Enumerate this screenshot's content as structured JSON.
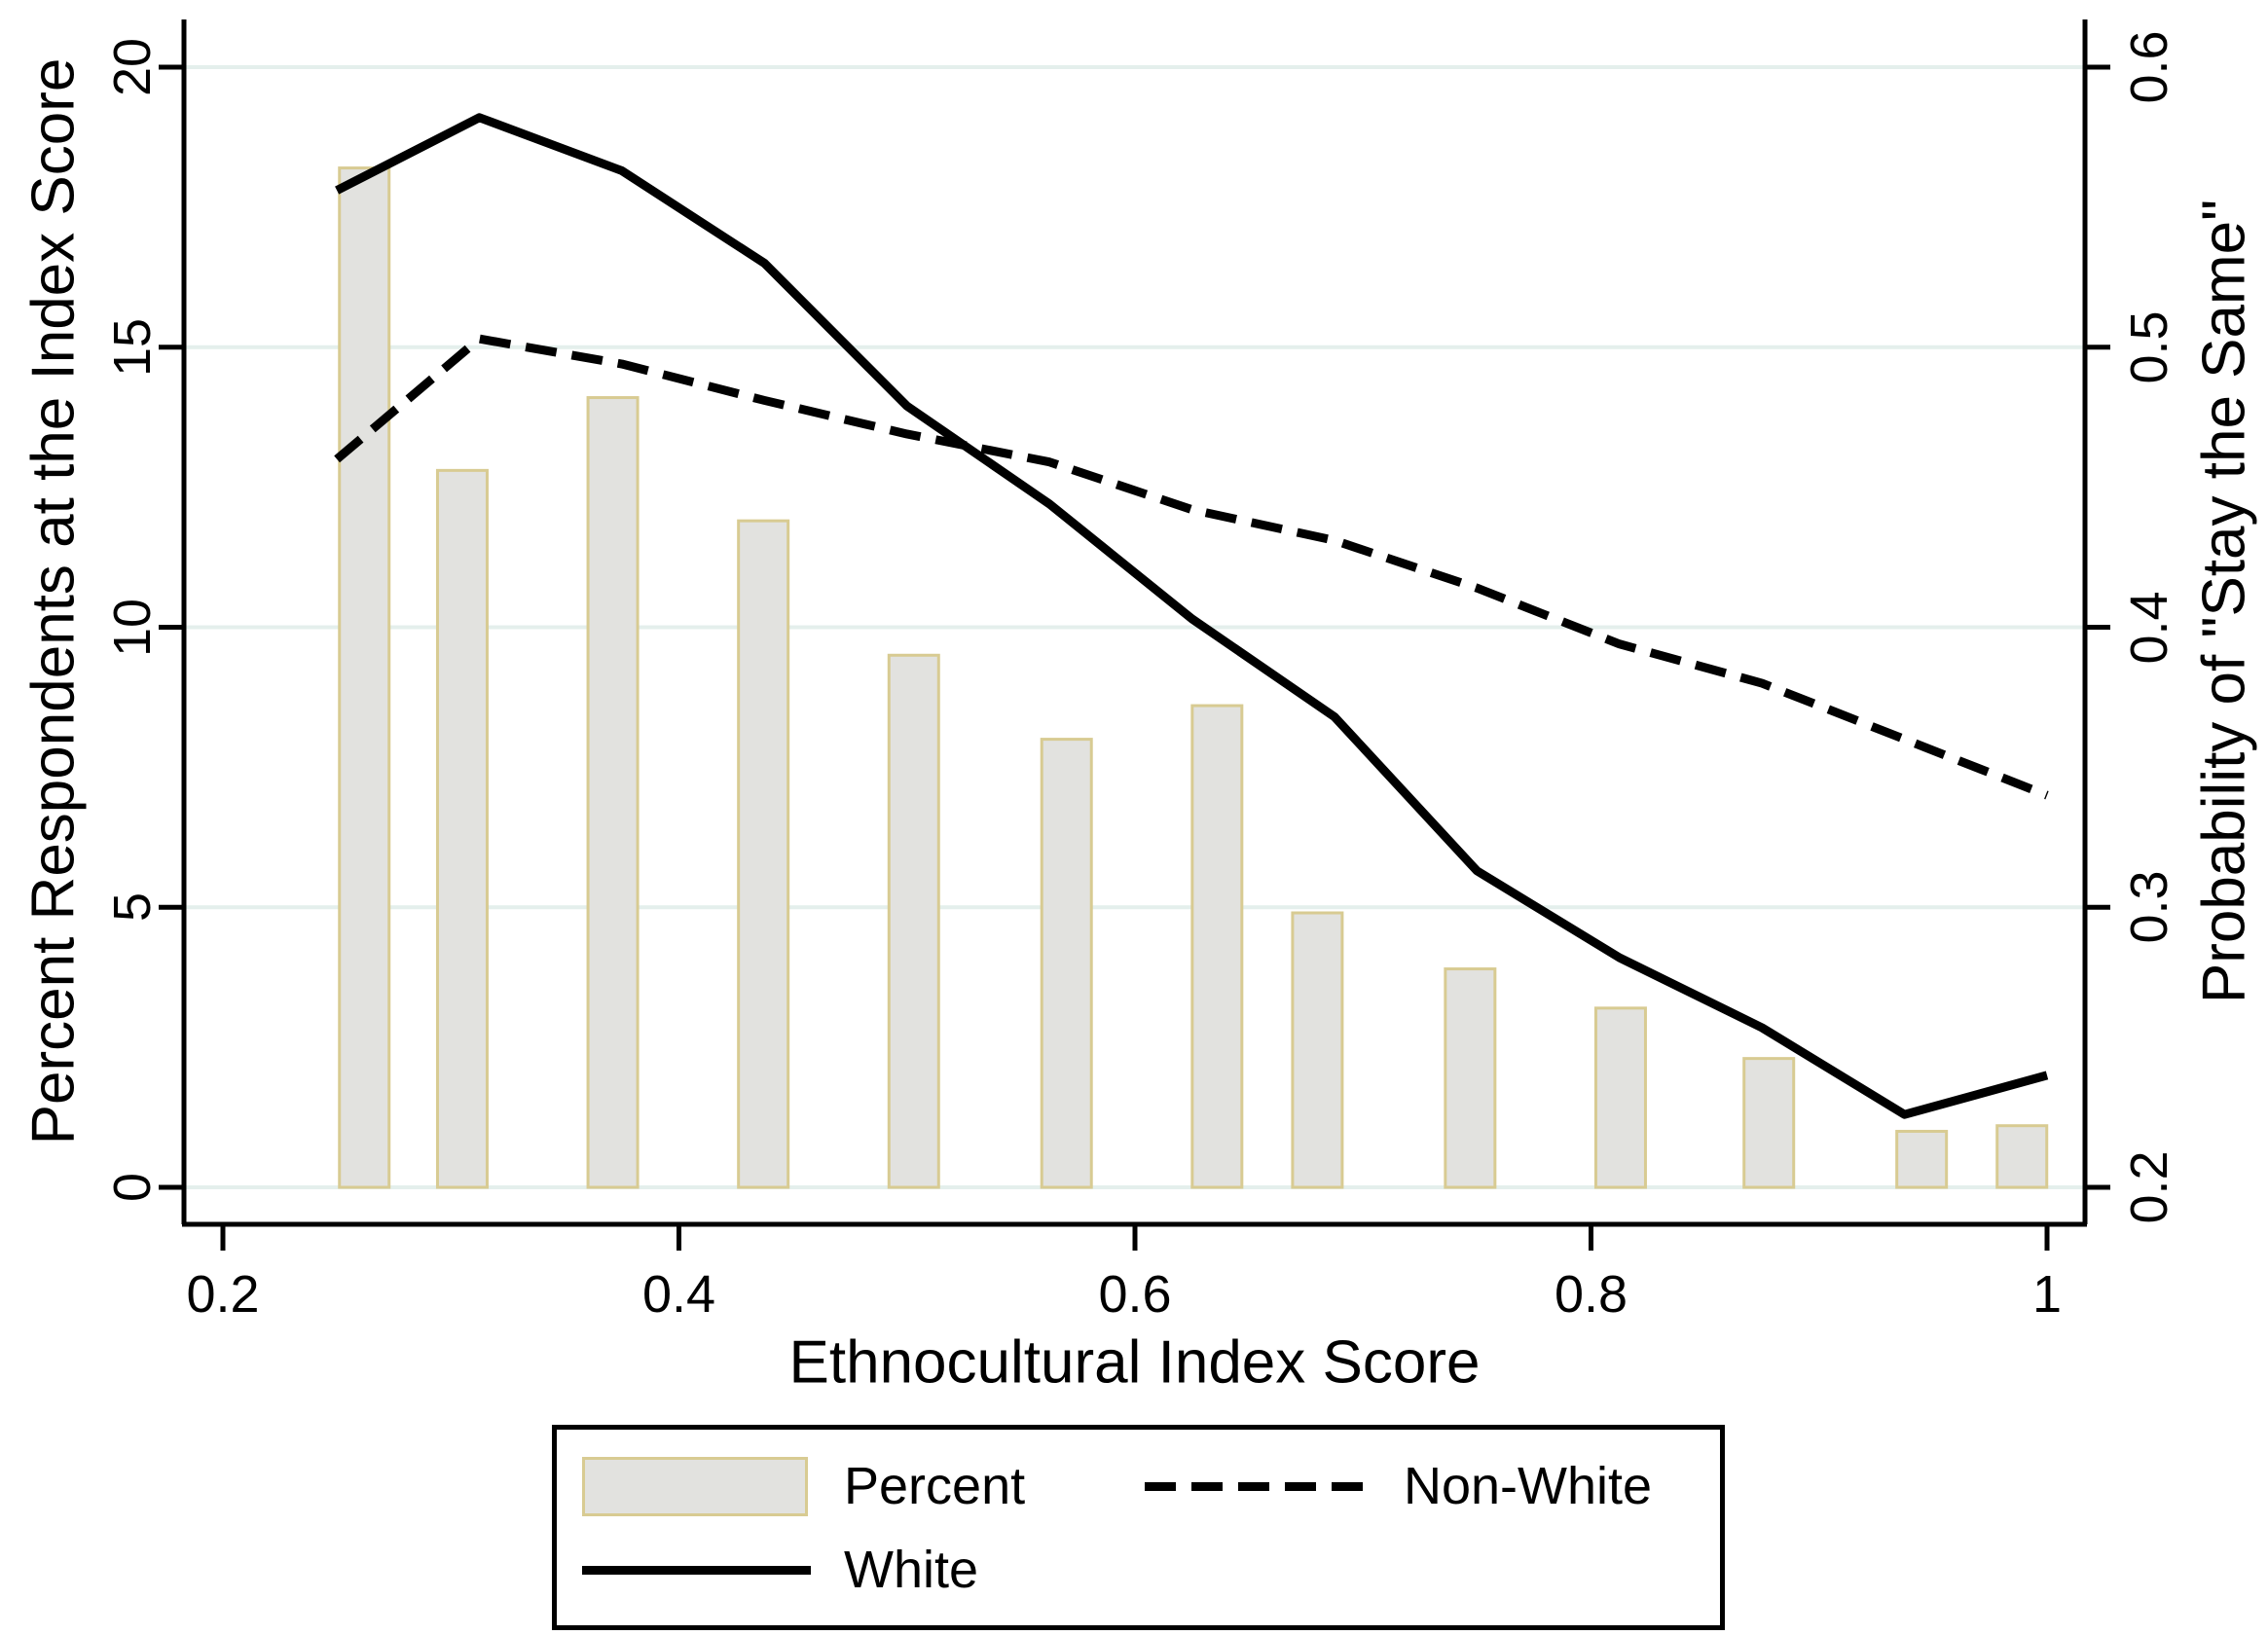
{
  "figure": {
    "background": "#ffffff"
  },
  "chart_data": {
    "type": "bar",
    "subtype": "combo-bar-and-line-dual-axis",
    "title": "",
    "xlabel": "Ethnocultural Index Score",
    "ylabel_left": "Percent Respondents at the Index Score",
    "ylabel_right": "Probability of \"Stay the Same\"",
    "grid": true,
    "xlim": [
      0.183,
      1.017
    ],
    "x_ticks": [
      0.2,
      0.4,
      0.6,
      0.8,
      1
    ],
    "x_tick_labels": [
      "0.2",
      "0.4",
      "0.6",
      "0.8",
      "1"
    ],
    "left_axis": {
      "lim": [
        0,
        20
      ],
      "ticks": [
        0,
        5,
        10,
        15,
        20
      ],
      "tick_labels": [
        "0",
        "5",
        "10",
        "15",
        "20"
      ]
    },
    "right_axis": {
      "lim": [
        0.2,
        0.6
      ],
      "ticks": [
        0.2,
        0.3,
        0.4,
        0.5,
        0.6
      ],
      "tick_labels": [
        "0.2",
        "0.3",
        "0.4",
        "0.5",
        "0.6"
      ]
    },
    "bars": {
      "name": "Percent",
      "axis": "left",
      "x": [
        0.262,
        0.305,
        0.371,
        0.437,
        0.503,
        0.57,
        0.636,
        0.68,
        0.747,
        0.813,
        0.878,
        0.945,
        0.989
      ],
      "values": [
        18.2,
        12.8,
        14.1,
        11.9,
        9.5,
        8.0,
        8.6,
        4.9,
        3.9,
        3.2,
        2.3,
        1.0,
        1.1
      ],
      "fill": "#e2e2df",
      "border": "#d8cb92"
    },
    "series": [
      {
        "name": "Non-White",
        "style": "dashed",
        "axis": "right",
        "color": "#000000",
        "x": [
          0.25,
          0.3125,
          0.375,
          0.4375,
          0.5,
          0.5625,
          0.625,
          0.6875,
          0.75,
          0.8125,
          0.875,
          0.9375,
          1.0
        ],
        "values": [
          0.46,
          0.503,
          0.494,
          0.481,
          0.469,
          0.459,
          0.442,
          0.431,
          0.414,
          0.394,
          0.38,
          0.36,
          0.34
        ]
      },
      {
        "name": "White",
        "style": "solid",
        "axis": "right",
        "color": "#000000",
        "x": [
          0.25,
          0.3125,
          0.375,
          0.4375,
          0.5,
          0.5625,
          0.625,
          0.6875,
          0.75,
          0.8125,
          0.875,
          0.9375,
          1.0
        ],
        "values": [
          0.556,
          0.582,
          0.563,
          0.53,
          0.479,
          0.444,
          0.403,
          0.368,
          0.313,
          0.282,
          0.257,
          0.226,
          0.24
        ]
      }
    ],
    "legend": {
      "position": "bottom",
      "entries": [
        {
          "label": "Percent",
          "swatch": "bar"
        },
        {
          "label": "Non-White",
          "swatch": "dashed-line"
        },
        {
          "label": "White",
          "swatch": "solid-line"
        }
      ]
    },
    "colors": {
      "grid": "#e4efec",
      "axis": "#000000",
      "background": "#ffffff"
    }
  }
}
